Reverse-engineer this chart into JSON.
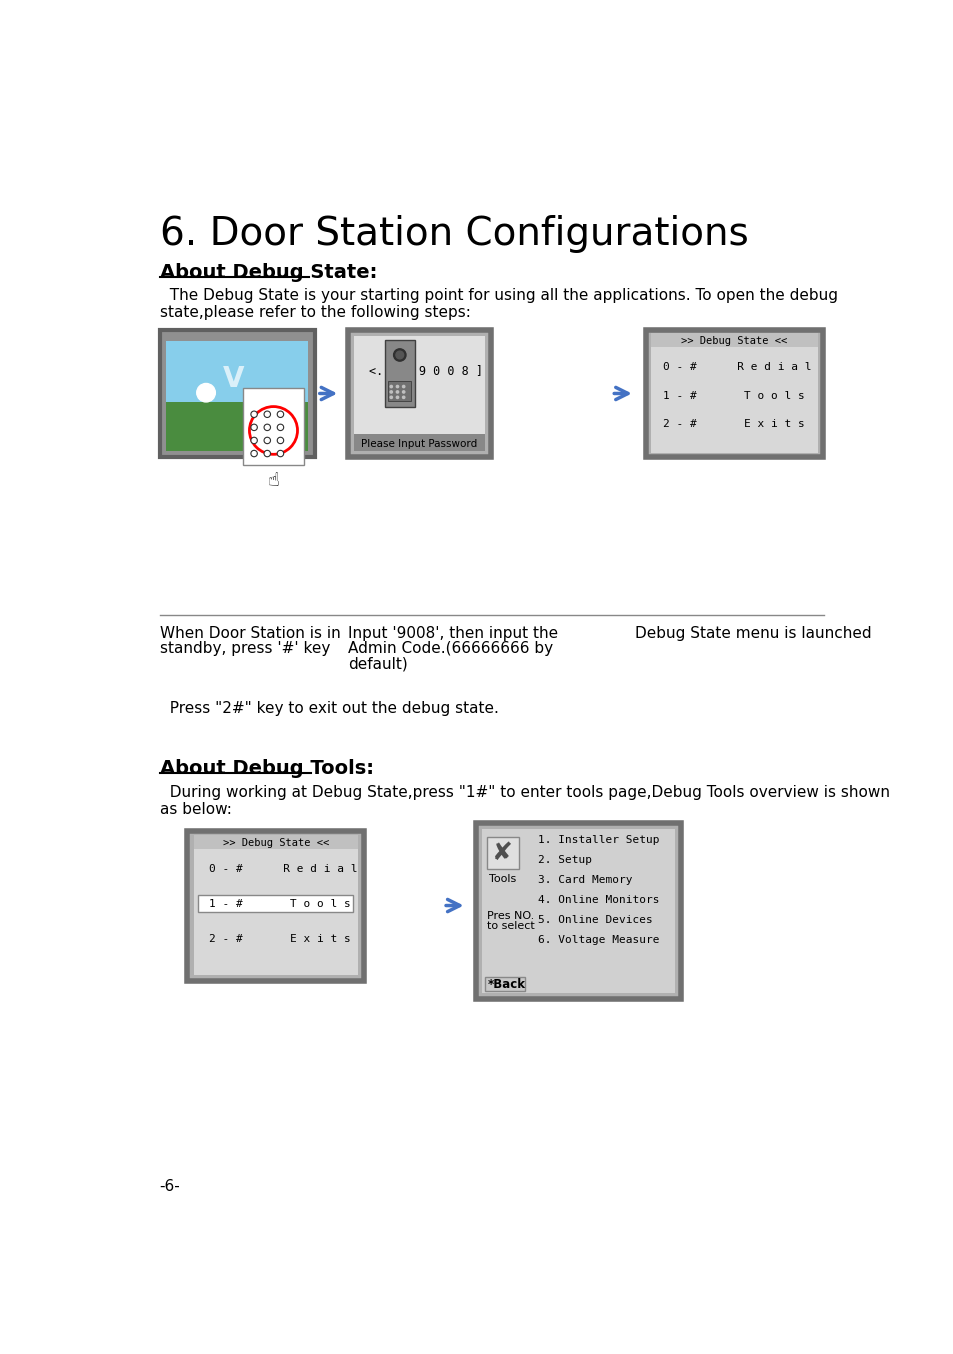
{
  "title": "6. Door Station Configurations",
  "section1_title": "About Debug State:",
  "section1_para1": "  The Debug State is your starting point for using all the applications. To open the debug",
  "section1_para2": "state,please refer to the following steps:",
  "caption1_line1": "When Door Station is in",
  "caption1_line2": "standby, press '#' key",
  "caption2_line1": "Input '9008', then input the",
  "caption2_line2": "Admin Code.(66666666 by",
  "caption2_line3": "default)",
  "caption3": "Debug State menu is launched",
  "press_note": "  Press \"2#\" key to exit out the debug state.",
  "section2_title": "About Debug Tools:",
  "section2_para1": "  During working at Debug State,press \"1#\" to enter tools page,Debug Tools overview is shown",
  "section2_para2": "as below:",
  "debug_menu_title": ">> Debug State <<",
  "password_prompt": "<... [ 9 0 0 8 ]",
  "password_label": "Please Input Password",
  "tools_items": [
    "1. Installer Setup",
    "2. Setup",
    "3. Card Memory",
    "4. Online Monitors",
    "5. Online Devices",
    "6. Voltage Measure"
  ],
  "tools_label": "Tools",
  "pres_no": "Pres NO.",
  "to_select": "to select",
  "back_label": "*Back",
  "page_num": "-6-",
  "bg_color": "#ffffff",
  "blue_arrow": "#4472c4"
}
